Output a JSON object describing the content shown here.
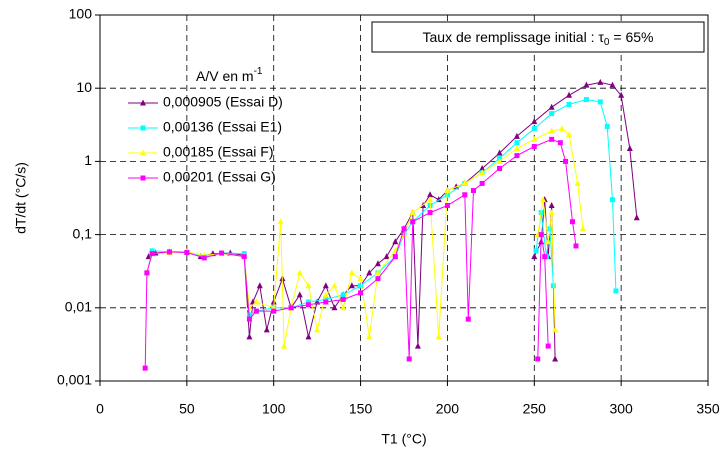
{
  "chart_data": {
    "type": "scatter",
    "xlabel": "T1 (°C)",
    "ylabel": "dT/dt (°C/s)",
    "annotation": {
      "prefix": "Taux de remplissage initial : τ",
      "subscript": "0",
      "suffix": " = 65%"
    },
    "legend_title": {
      "text": "A/V en m",
      "superscript": "-1"
    },
    "legend_position": "upper left",
    "grid": true,
    "log_y": true,
    "xlim": [
      0,
      350
    ],
    "xticks": [
      0,
      50,
      100,
      150,
      200,
      250,
      300,
      350
    ],
    "ylim": [
      0.001,
      100
    ],
    "yticks": [
      {
        "value": 0.001,
        "label": "0,001"
      },
      {
        "value": 0.01,
        "label": "0,01"
      },
      {
        "value": 0.1,
        "label": "0,1"
      },
      1,
      10,
      100
    ],
    "series": [
      {
        "name": "0,000905 (Essai D)",
        "color": "#800080",
        "marker": "triangle",
        "x": [
          28,
          32,
          40,
          50,
          58,
          65,
          75,
          83,
          86,
          88,
          92,
          96,
          100,
          105,
          110,
          115,
          120,
          125,
          130,
          135,
          140,
          145,
          150,
          155,
          160,
          165,
          170,
          175,
          180,
          183,
          186,
          190,
          195,
          200,
          205,
          210,
          220,
          230,
          240,
          250,
          260,
          270,
          280,
          288,
          295,
          300,
          305,
          309,
          null,
          250,
          254,
          256,
          258,
          260,
          262
        ],
        "values": [
          0.05,
          0.056,
          0.058,
          0.058,
          0.05,
          0.055,
          0.056,
          0.052,
          0.004,
          0.012,
          0.02,
          0.005,
          0.012,
          0.025,
          0.01,
          0.015,
          0.004,
          0.012,
          0.02,
          0.01,
          0.015,
          0.02,
          0.02,
          0.03,
          0.04,
          0.05,
          0.08,
          0.12,
          0.2,
          0.003,
          0.25,
          0.35,
          0.3,
          0.4,
          0.45,
          0.5,
          0.8,
          1.3,
          2.2,
          3.5,
          5.5,
          8,
          11,
          12,
          11,
          8,
          1.5,
          0.17,
          null,
          0.05,
          0.08,
          0.3,
          0.05,
          0.25,
          0.002
        ]
      },
      {
        "name": "0,00136 (Essai E1)",
        "color": "#00ffff",
        "marker": "square",
        "x": [
          27,
          30,
          40,
          50,
          60,
          70,
          83,
          86,
          90,
          100,
          110,
          120,
          130,
          140,
          150,
          160,
          170,
          175,
          180,
          190,
          200,
          210,
          220,
          230,
          240,
          250,
          260,
          270,
          280,
          288,
          292,
          295,
          297,
          null,
          251,
          254,
          257,
          259,
          261
        ],
        "values": [
          0.03,
          0.06,
          0.058,
          0.057,
          0.05,
          0.056,
          0.055,
          0.008,
          0.009,
          0.01,
          0.01,
          0.012,
          0.013,
          0.015,
          0.02,
          0.03,
          0.05,
          0.1,
          0.15,
          0.25,
          0.35,
          0.5,
          0.7,
          1.1,
          1.8,
          2.8,
          4.5,
          6,
          7,
          6.5,
          3,
          0.3,
          0.017,
          null,
          0.06,
          0.2,
          0.05,
          0.12,
          0.02
        ]
      },
      {
        "name": "0,00185 (Essai F)",
        "color": "#ffff00",
        "marker": "triangle",
        "x": [
          27,
          30,
          40,
          50,
          60,
          70,
          83,
          86,
          90,
          100,
          104,
          106,
          110,
          115,
          120,
          125,
          130,
          135,
          140,
          145,
          150,
          155,
          160,
          170,
          175,
          180,
          190,
          195,
          200,
          210,
          220,
          230,
          240,
          250,
          260,
          266,
          270,
          275,
          278,
          null,
          252,
          255,
          258,
          260,
          262
        ],
        "values": [
          0.03,
          0.055,
          0.057,
          0.058,
          0.052,
          0.055,
          0.05,
          0.01,
          0.012,
          0.01,
          0.15,
          0.003,
          0.01,
          0.03,
          0.02,
          0.005,
          0.015,
          0.02,
          0.01,
          0.03,
          0.025,
          0.004,
          0.03,
          0.06,
          0.1,
          0.2,
          0.3,
          0.004,
          0.4,
          0.5,
          0.7,
          1,
          1.5,
          2,
          2.6,
          2.8,
          2.3,
          0.5,
          0.12,
          null,
          0.1,
          0.3,
          0.08,
          0.2,
          0.005
        ]
      },
      {
        "name": "0,00201 (Essai G)",
        "color": "#ff00ff",
        "marker": "square",
        "x": [
          26,
          27,
          30,
          40,
          50,
          60,
          70,
          83,
          86,
          90,
          100,
          110,
          120,
          130,
          140,
          150,
          160,
          170,
          175,
          178,
          180,
          190,
          200,
          210,
          212,
          215,
          220,
          230,
          240,
          250,
          260,
          265,
          268,
          272,
          274,
          null,
          252,
          254,
          256,
          258
        ],
        "values": [
          0.0015,
          0.03,
          0.055,
          0.058,
          0.057,
          0.048,
          0.056,
          0.05,
          0.007,
          0.009,
          0.009,
          0.01,
          0.011,
          0.012,
          0.013,
          0.016,
          0.025,
          0.05,
          0.12,
          0.002,
          0.15,
          0.2,
          0.25,
          0.35,
          0.007,
          0.4,
          0.5,
          0.8,
          1.2,
          1.6,
          2,
          1.8,
          1,
          0.15,
          0.07,
          null,
          0.002,
          0.1,
          0.05,
          0.003
        ]
      }
    ]
  }
}
